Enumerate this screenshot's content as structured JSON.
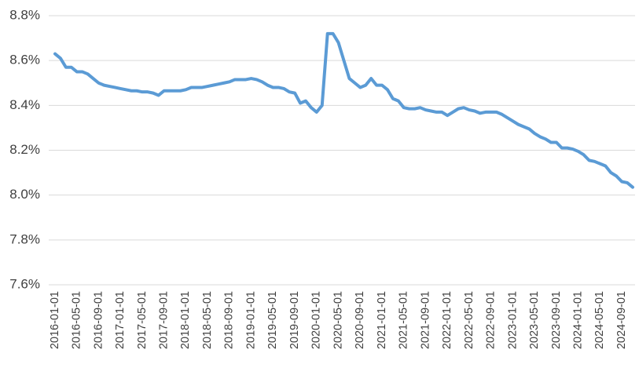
{
  "chart_data": {
    "type": "line",
    "categories": [
      "2016-01-01",
      null,
      null,
      null,
      "2016-05-01",
      null,
      null,
      null,
      "2016-09-01",
      null,
      null,
      null,
      "2017-01-01",
      null,
      null,
      null,
      "2017-05-01",
      null,
      null,
      null,
      "2017-09-01",
      null,
      null,
      null,
      "2018-01-01",
      null,
      null,
      null,
      "2018-05-01",
      null,
      null,
      null,
      "2018-09-01",
      null,
      null,
      null,
      "2019-01-01",
      null,
      null,
      null,
      "2019-05-01",
      null,
      null,
      null,
      "2019-09-01",
      null,
      null,
      null,
      "2020-01-01",
      null,
      null,
      null,
      "2020-05-01",
      null,
      null,
      null,
      "2020-09-01",
      null,
      null,
      null,
      "2021-01-01",
      null,
      null,
      null,
      "2021-05-01",
      null,
      null,
      null,
      "2021-09-01",
      null,
      null,
      null,
      "2022-01-01",
      null,
      null,
      null,
      "2022-05-01",
      null,
      null,
      null,
      "2022-09-01",
      null,
      null,
      null,
      "2023-01-01",
      null,
      null,
      null,
      "2023-05-01",
      null,
      null,
      null,
      "2023-09-01",
      null,
      null,
      null,
      "2024-01-01",
      null,
      null,
      null,
      "2024-05-01",
      null,
      null,
      null,
      "2024-09-01",
      null,
      null
    ],
    "values": [
      8.63,
      8.61,
      8.57,
      8.57,
      8.55,
      8.55,
      8.54,
      8.52,
      8.5,
      8.49,
      8.485,
      8.48,
      8.475,
      8.47,
      8.465,
      8.465,
      8.46,
      8.46,
      8.455,
      8.445,
      8.465,
      8.465,
      8.465,
      8.465,
      8.47,
      8.48,
      8.48,
      8.48,
      8.485,
      8.49,
      8.495,
      8.5,
      8.505,
      8.515,
      8.515,
      8.515,
      8.52,
      8.515,
      8.505,
      8.49,
      8.48,
      8.48,
      8.475,
      8.46,
      8.455,
      8.41,
      8.42,
      8.39,
      8.37,
      8.4,
      8.72,
      8.72,
      8.68,
      8.6,
      8.52,
      8.5,
      8.48,
      8.49,
      8.52,
      8.49,
      8.49,
      8.47,
      8.43,
      8.42,
      8.39,
      8.385,
      8.385,
      8.39,
      8.38,
      8.375,
      8.37,
      8.37,
      8.355,
      8.37,
      8.385,
      8.39,
      8.38,
      8.375,
      8.365,
      8.37,
      8.37,
      8.37,
      8.36,
      8.345,
      8.33,
      8.315,
      8.305,
      8.295,
      8.275,
      8.26,
      8.25,
      8.235,
      8.235,
      8.21,
      8.21,
      8.205,
      8.195,
      8.18,
      8.155,
      8.15,
      8.14,
      8.13,
      8.1,
      8.085,
      8.06,
      8.055,
      8.035
    ],
    "color": "#5b9bd5",
    "ylim": [
      7.6,
      8.8
    ],
    "yticks": [
      {
        "value": 7.6,
        "label": "7.6%"
      },
      {
        "value": 7.8,
        "label": "7.8%"
      },
      {
        "value": 8.0,
        "label": "8.0%"
      },
      {
        "value": 8.2,
        "label": "8.2%"
      },
      {
        "value": 8.4,
        "label": "8.4%"
      },
      {
        "value": 8.6,
        "label": "8.6%"
      },
      {
        "value": 8.8,
        "label": "8.8%"
      }
    ],
    "grid": true
  }
}
